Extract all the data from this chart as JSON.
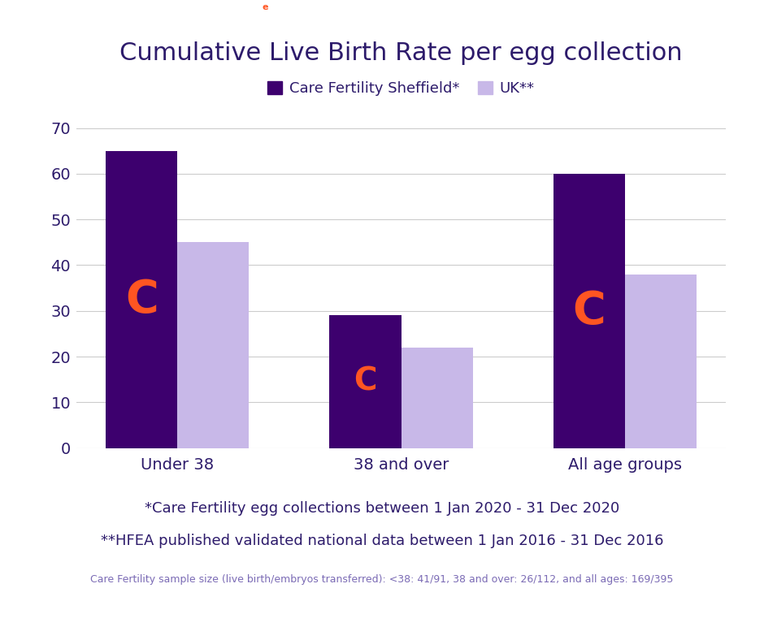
{
  "title": "Cumulative Live Birth Rate per egg collection",
  "categories": [
    "Under 38",
    "38 and over",
    "All age groups"
  ],
  "sheffield_values": [
    65,
    29,
    60
  ],
  "uk_values": [
    45,
    22,
    38
  ],
  "sheffield_color": "#3d006e",
  "uk_color": "#c8b8e8",
  "legend_sheffield": "Care Fertility Sheffield*",
  "legend_uk": "UK**",
  "logo_color": "#ff5522",
  "ylim": [
    0,
    70
  ],
  "yticks": [
    0,
    10,
    20,
    30,
    40,
    50,
    60,
    70
  ],
  "footnote1": "*Care Fertility egg collections between 1 Jan 2020 - 31 Dec 2020",
  "footnote2": "**HFEA published validated national data between 1 Jan 2016 - 31 Dec 2016",
  "footnote3": "Care Fertility sample size (live birth/embryos transferred): <38: 41/91, 38 and over: 26/112, and all ages: 169/395",
  "background_color": "#ffffff",
  "title_color": "#2d1b6b",
  "axis_text_color": "#2d1b6b",
  "footnote1_color": "#2d1b6b",
  "footnote2_color": "#2d1b6b",
  "footnote3_color": "#7b6bb5",
  "bar_width": 0.32,
  "title_fontsize": 22,
  "tick_fontsize": 14,
  "legend_fontsize": 13,
  "footnote1_fontsize": 13,
  "footnote2_fontsize": 13,
  "footnote3_fontsize": 9
}
